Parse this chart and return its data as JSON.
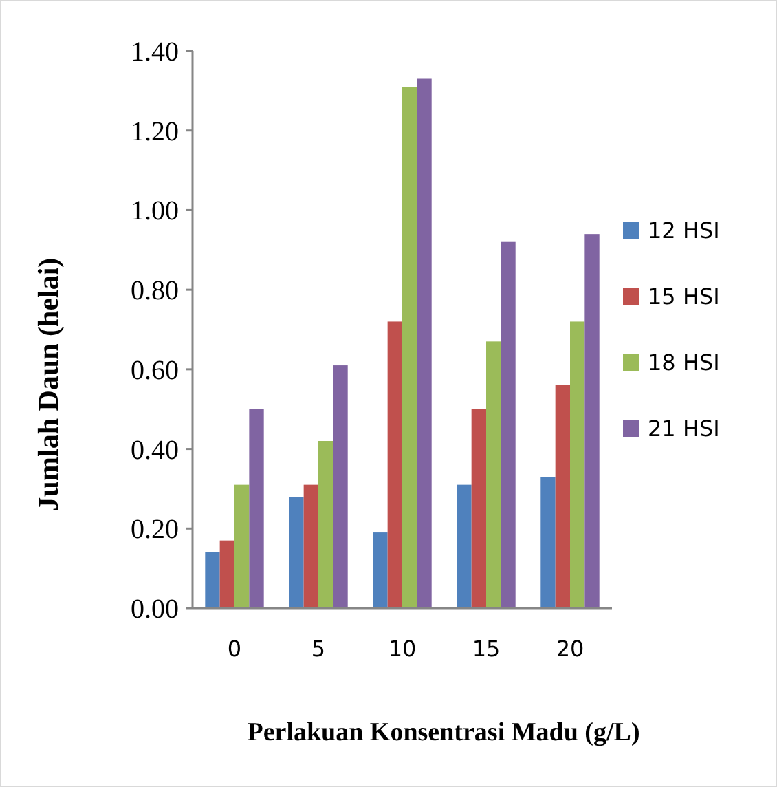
{
  "chart_data": {
    "type": "bar",
    "xlabel": "Perlakuan Konsentrasi Madu (g/L)",
    "ylabel": "Jumlah Daun (helai)",
    "categories": [
      "0",
      "5",
      "10",
      "15",
      "20"
    ],
    "series": [
      {
        "name": "12 HSI",
        "color": "#4f81bd",
        "values": [
          0.14,
          0.28,
          0.19,
          0.31,
          0.33
        ]
      },
      {
        "name": "15 HSI",
        "color": "#c0504d",
        "values": [
          0.17,
          0.31,
          0.72,
          0.5,
          0.56
        ]
      },
      {
        "name": "18 HSI",
        "color": "#9bbb59",
        "values": [
          0.31,
          0.42,
          1.31,
          0.67,
          0.72
        ]
      },
      {
        "name": "21 HSI",
        "color": "#8064a2",
        "values": [
          0.5,
          0.61,
          1.33,
          0.92,
          0.94
        ]
      }
    ],
    "ylim": [
      0,
      1.4
    ],
    "yticks": [
      {
        "value": 0,
        "label": "0.00"
      },
      {
        "value": 0.2,
        "label": "0.20"
      },
      {
        "value": 0.4,
        "label": "0.40"
      },
      {
        "value": 0.6,
        "label": "0.60"
      },
      {
        "value": 0.8,
        "label": "0.80"
      },
      {
        "value": 1.0,
        "label": "1.00"
      },
      {
        "value": 1.2,
        "label": "1.20"
      },
      {
        "value": 1.4,
        "label": "1.40"
      }
    ],
    "grid": false,
    "legend": "right"
  }
}
